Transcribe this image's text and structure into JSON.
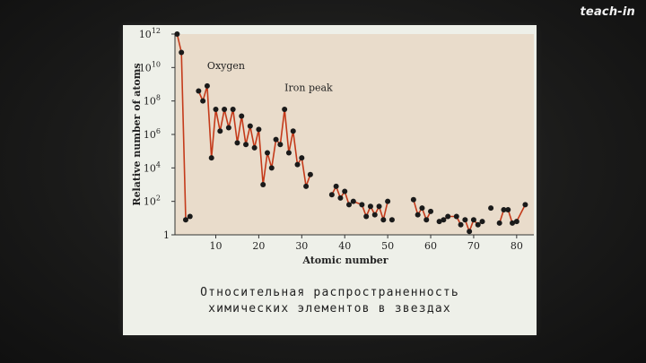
{
  "watermark": "teach-in",
  "caption": {
    "line1": "Относительная распространенность",
    "line2": "химических элементов в звездах"
  },
  "colors": {
    "plot_background": "#e9dccb",
    "line": "#c43a1a",
    "points": "#1a1a1a",
    "slide": "#eef0e9"
  },
  "chart_data": {
    "type": "line",
    "xlabel": "Atomic number",
    "ylabel": "Relative number of atoms",
    "xlim": [
      0.5,
      84
    ],
    "ylim_log10": [
      0,
      12
    ],
    "y_scale": "log",
    "x_ticks": [
      10,
      20,
      30,
      40,
      50,
      60,
      70,
      80
    ],
    "y_ticks": [
      {
        "label": "1",
        "exp": ""
      },
      {
        "label": "10",
        "exp": "2"
      },
      {
        "label": "10",
        "exp": "4"
      },
      {
        "label": "10",
        "exp": "6"
      },
      {
        "label": "10",
        "exp": "8"
      },
      {
        "label": "10",
        "exp": "10"
      },
      {
        "label": "10",
        "exp": "12"
      }
    ],
    "annotations": [
      {
        "text": "Oxygen",
        "x": 8,
        "y_log10": 9.9
      },
      {
        "text": "Iron peak",
        "x": 26,
        "y_log10": 8.6
      }
    ],
    "segments": [
      [
        [
          1,
          12
        ],
        [
          2,
          10.9
        ],
        [
          3,
          0.9
        ],
        [
          4,
          1.1
        ]
      ],
      [
        [
          6,
          8.6
        ],
        [
          7,
          8.0
        ],
        [
          8,
          8.9
        ],
        [
          9,
          4.6
        ],
        [
          10,
          7.5
        ],
        [
          11,
          6.2
        ],
        [
          12,
          7.5
        ],
        [
          13,
          6.4
        ],
        [
          14,
          7.5
        ],
        [
          15,
          5.5
        ],
        [
          16,
          7.1
        ],
        [
          17,
          5.4
        ],
        [
          18,
          6.5
        ],
        [
          19,
          5.2
        ],
        [
          20,
          6.3
        ],
        [
          21,
          3.0
        ],
        [
          22,
          4.9
        ],
        [
          23,
          4.0
        ],
        [
          24,
          5.7
        ],
        [
          25,
          5.4
        ],
        [
          26,
          7.5
        ],
        [
          27,
          4.9
        ],
        [
          28,
          6.2
        ],
        [
          29,
          4.2
        ],
        [
          30,
          4.6
        ],
        [
          31,
          2.9
        ],
        [
          32,
          3.6
        ]
      ],
      [
        [
          37,
          2.4
        ],
        [
          38,
          2.9
        ],
        [
          39,
          2.2
        ],
        [
          40,
          2.6
        ],
        [
          41,
          1.8
        ]
      ],
      [
        [
          42,
          2.0
        ],
        [
          44,
          1.8
        ],
        [
          45,
          1.1
        ],
        [
          46,
          1.7
        ],
        [
          47,
          1.2
        ],
        [
          48,
          1.7
        ],
        [
          49,
          0.9
        ],
        [
          50,
          2.0
        ]
      ],
      [
        [
          51,
          0.9
        ]
      ],
      [
        [
          56,
          2.1
        ],
        [
          57,
          1.2
        ],
        [
          58,
          1.6
        ],
        [
          59,
          0.9
        ],
        [
          60,
          1.4
        ]
      ],
      [
        [
          62,
          0.8
        ],
        [
          63,
          0.9
        ],
        [
          64,
          1.1
        ],
        [
          66,
          1.1
        ],
        [
          67,
          0.6
        ]
      ],
      [
        [
          68,
          0.9
        ],
        [
          69,
          0.2
        ],
        [
          70,
          0.9
        ],
        [
          71,
          0.6
        ],
        [
          72,
          0.8
        ]
      ],
      [
        [
          74,
          1.6
        ]
      ],
      [
        [
          76,
          0.7
        ],
        [
          77,
          1.5
        ],
        [
          78,
          1.5
        ],
        [
          79,
          0.7
        ],
        [
          80,
          0.8
        ],
        [
          82,
          1.8
        ]
      ]
    ]
  }
}
